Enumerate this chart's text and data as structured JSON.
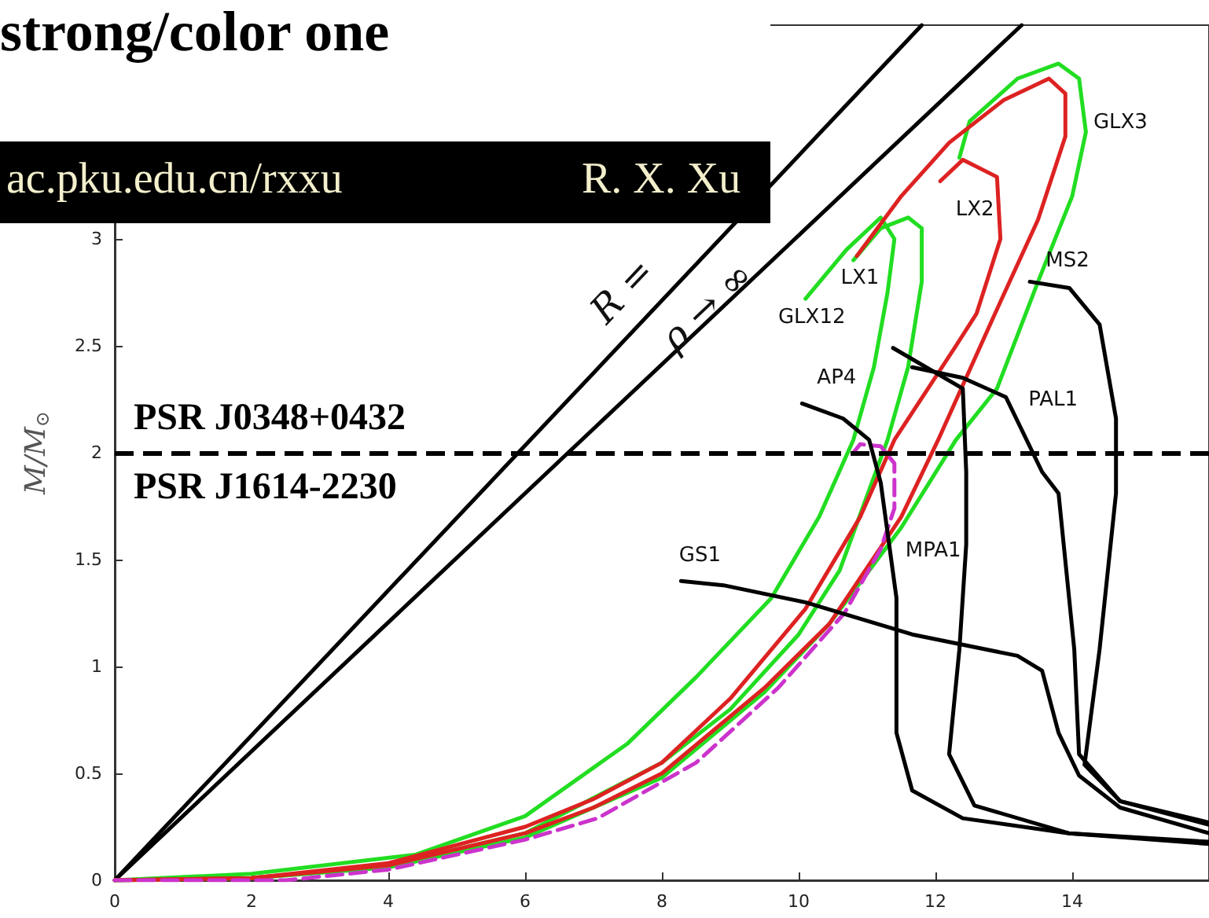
{
  "chart_data": {
    "type": "line",
    "title": "strong/color one",
    "ylabel": "M/M$_{⊙}$",
    "xlim": [
      0,
      16
    ],
    "ylim": [
      0,
      4
    ],
    "xticks": [
      0,
      2,
      4,
      6,
      8,
      10,
      12,
      14
    ],
    "yticks": [
      0,
      0.5,
      1,
      1.5,
      2,
      2.5,
      3
    ],
    "line_style": "solid",
    "series": [
      {
        "name": "R =",
        "color": "#000000",
        "x": [
          0,
          11.8
        ],
        "values": [
          0,
          4
        ]
      },
      {
        "name": "ρ → ∞",
        "color": "#000000",
        "x": [
          0,
          13.26
        ],
        "values": [
          0,
          4
        ]
      },
      {
        "name": "GLX12",
        "color": "#22dd22",
        "x": [
          0,
          2,
          4.4,
          6,
          7.5,
          8.5,
          9.6,
          10.3,
          10.8,
          11.1,
          11.3,
          11.4,
          11.2,
          10.7,
          10.1
        ],
        "values": [
          0,
          0.03,
          0.12,
          0.3,
          0.64,
          0.95,
          1.32,
          1.7,
          2.06,
          2.4,
          2.75,
          3.0,
          3.1,
          2.95,
          2.72
        ]
      },
      {
        "color": "#22dd22",
        "x": [
          0,
          2,
          4,
          6,
          8,
          9,
          10,
          10.6,
          11.3,
          11.6,
          11.8,
          11.8,
          11.6,
          11.2,
          10.8
        ],
        "values": [
          0,
          0.01,
          0.07,
          0.22,
          0.55,
          0.8,
          1.15,
          1.45,
          2.06,
          2.4,
          2.8,
          3.05,
          3.1,
          3.05,
          2.9
        ]
      },
      {
        "name": "GLX3",
        "color": "#22dd22",
        "x": [
          12.35,
          12.5,
          13.2,
          13.8,
          14.1,
          14.2,
          14.0,
          13.5,
          12.9,
          12.3,
          11.5,
          10.45,
          9.5,
          8,
          6,
          4,
          2,
          0
        ],
        "values": [
          3.38,
          3.55,
          3.75,
          3.82,
          3.75,
          3.5,
          3.2,
          2.8,
          2.3,
          2.06,
          1.65,
          1.2,
          0.88,
          0.48,
          0.2,
          0.06,
          0.01,
          0
        ]
      },
      {
        "name": "LX1",
        "color": "#dd2222",
        "x": [
          10.85,
          11.5,
          12.2,
          13,
          13.66,
          13.9,
          13.9,
          13.5,
          12.87,
          12.04,
          11.5,
          10.45,
          9.5,
          8,
          7,
          6,
          4,
          2,
          0
        ],
        "values": [
          2.92,
          3.2,
          3.45,
          3.65,
          3.75,
          3.68,
          3.48,
          3.09,
          2.65,
          2.06,
          1.7,
          1.2,
          0.9,
          0.5,
          0.34,
          0.22,
          0.07,
          0.01,
          0
        ]
      },
      {
        "name": "LX2",
        "color": "#dd2222",
        "x": [
          12.07,
          12.4,
          12.9,
          12.95,
          12.6,
          12.3,
          11.4,
          10.9,
          10.1,
          9,
          8,
          7,
          6,
          4,
          2,
          0
        ],
        "values": [
          3.27,
          3.37,
          3.29,
          3.0,
          2.65,
          2.5,
          2.06,
          1.7,
          1.27,
          0.85,
          0.55,
          0.38,
          0.25,
          0.08,
          0.01,
          0
        ]
      },
      {
        "color": "#cc33cc",
        "line_style": "dashed",
        "x": [
          0,
          2.5,
          4,
          6,
          7.06,
          8.5,
          9.7,
          10.67,
          11.2,
          11.4,
          11.4,
          11.2,
          10.9,
          10.8
        ],
        "values": [
          0,
          0,
          0.05,
          0.19,
          0.29,
          0.55,
          0.9,
          1.25,
          1.55,
          1.74,
          1.95,
          2.03,
          2.04,
          2.0
        ]
      },
      {
        "name": "AP4",
        "color": "#000000",
        "x": [
          10.05,
          10.65,
          11.03,
          11.2,
          11.43,
          11.43,
          11.66,
          12.4,
          13.95,
          16
        ],
        "values": [
          2.23,
          2.16,
          2.06,
          1.86,
          1.32,
          0.69,
          0.42,
          0.29,
          0.22,
          0.17
        ]
      },
      {
        "name": "MPA1",
        "color": "#000000",
        "x": [
          11.38,
          12.4,
          12.45,
          12.45,
          12.35,
          12.2,
          12.57,
          13.95,
          16
        ],
        "values": [
          2.49,
          2.3,
          1.91,
          1.57,
          1.08,
          0.59,
          0.35,
          0.22,
          0.18
        ]
      },
      {
        "name": "PAL1",
        "color": "#000000",
        "x": [
          11.66,
          12.4,
          13.03,
          13.56,
          13.8,
          14.03,
          14.1,
          14.7,
          16
        ],
        "values": [
          2.4,
          2.35,
          2.26,
          1.91,
          1.81,
          1.08,
          0.59,
          0.37,
          0.26
        ]
      },
      {
        "name": "MS2",
        "color": "#000000",
        "x": [
          13.38,
          13.96,
          14.4,
          14.64,
          14.64,
          14.4,
          14.18,
          14.7,
          16
        ],
        "values": [
          2.8,
          2.77,
          2.6,
          2.16,
          1.81,
          1.08,
          0.54,
          0.37,
          0.27
        ]
      },
      {
        "name": "GS1",
        "color": "#000000",
        "x": [
          8.28,
          8.9,
          10.1,
          11.66,
          13.2,
          13.56,
          13.8,
          14.1,
          14.7,
          16
        ],
        "values": [
          1.4,
          1.38,
          1.3,
          1.15,
          1.05,
          0.98,
          0.69,
          0.49,
          0.34,
          0.22
        ]
      }
    ],
    "ref_lines": [
      {
        "axis": "y",
        "value": 2,
        "label": "PSR J0348+0432",
        "color": "#000000",
        "line_style": "dashed"
      }
    ],
    "annotations": [
      "ac.pku.edu.cn/rxxu",
      "R. X. Xu",
      "PSR J1614-2230"
    ]
  }
}
